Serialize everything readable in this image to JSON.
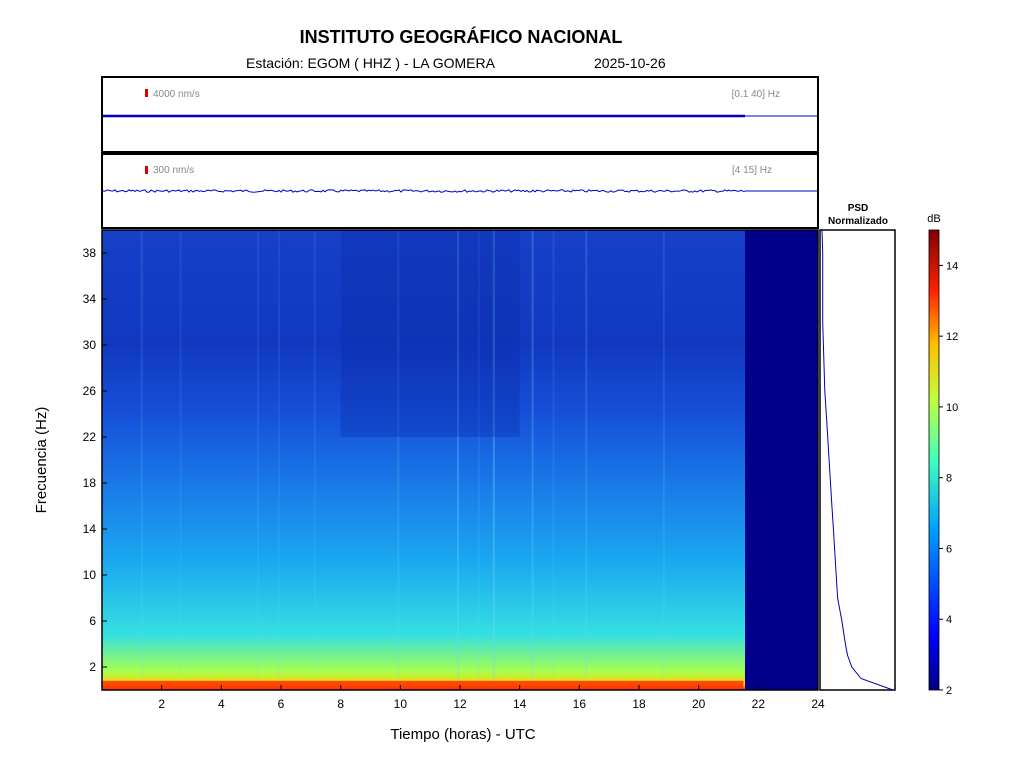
{
  "header": {
    "title": "INSTITUTO GEOGRÁFICO NACIONAL",
    "station": "Estación:  EGOM ( HHZ ) - LA GOMERA",
    "date": "2025-10-26"
  },
  "traces": [
    {
      "scale_label": "4000 nm/s",
      "band_label": "[0.1 40] Hz",
      "color": "#0000cc"
    },
    {
      "scale_label": "300 nm/s",
      "band_label": "[4 15] Hz",
      "color": "#0000cc"
    }
  ],
  "psd": {
    "title_line1": "PSD",
    "title_line2": "Normalizado"
  },
  "colorbar": {
    "unit": "dB",
    "range": [
      2,
      15
    ],
    "ticks": [
      "14",
      "12",
      "10",
      "8",
      "6",
      "4",
      "2"
    ]
  },
  "chart_data": {
    "type": "heatmap",
    "title": "",
    "xlabel": "Tiempo (horas) - UTC",
    "ylabel": "Frecuencia  (Hz)",
    "xlim": [
      0,
      24
    ],
    "ylim": [
      0,
      40
    ],
    "x_ticks": [
      "2",
      "4",
      "6",
      "8",
      "10",
      "12",
      "14",
      "16",
      "18",
      "20",
      "22",
      "24"
    ],
    "y_ticks": [
      "2",
      "6",
      "10",
      "14",
      "18",
      "22",
      "26",
      "30",
      "34",
      "38"
    ],
    "data_end_hour": 21.5,
    "psd_profile": {
      "freq": [
        0,
        1,
        2,
        3,
        4,
        6,
        8,
        10,
        12,
        14,
        16,
        18,
        20,
        22,
        24,
        26,
        28,
        30,
        32,
        34,
        36,
        38,
        40
      ],
      "value": [
        1.0,
        0.55,
        0.42,
        0.36,
        0.33,
        0.28,
        0.22,
        0.2,
        0.18,
        0.16,
        0.14,
        0.12,
        0.1,
        0.08,
        0.06,
        0.04,
        0.03,
        0.02,
        0.01,
        0.01,
        0.01,
        0.01,
        0.0
      ]
    }
  }
}
